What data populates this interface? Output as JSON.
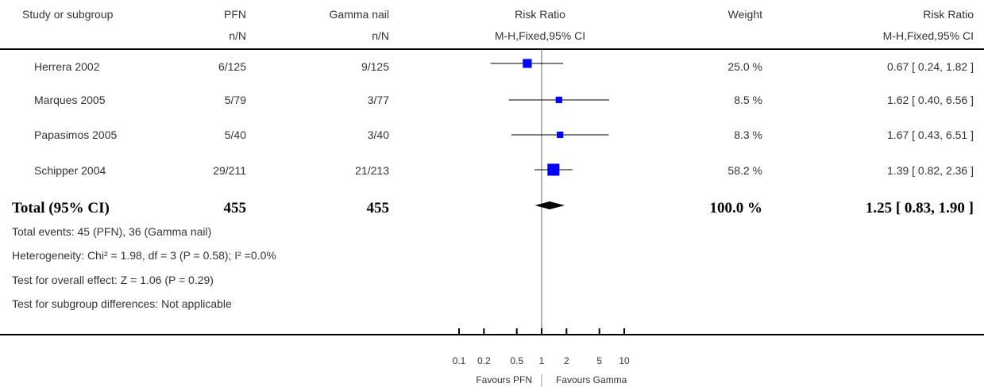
{
  "header": {
    "study_col": "Study or subgroup",
    "group1": "PFN",
    "group1_sub": "n/N",
    "group2": "Gamma nail",
    "group2_sub": "n/N",
    "effect": "Risk Ratio",
    "effect_sub": "M-H,Fixed,95% CI",
    "weight": "Weight",
    "effect2": "Risk Ratio",
    "effect2_sub": "M-H,Fixed,95% CI"
  },
  "studies": [
    {
      "name": "Herrera 2002",
      "pfn": "6/125",
      "gamma": "9/125",
      "weight": "25.0 %",
      "ci_text": "0.67 [ 0.24, 1.82 ]"
    },
    {
      "name": "Marques 2005",
      "pfn": "5/79",
      "gamma": "3/77",
      "weight": "8.5 %",
      "ci_text": "1.62 [ 0.40, 6.56 ]"
    },
    {
      "name": "Papasimos 2005",
      "pfn": "5/40",
      "gamma": "3/40",
      "weight": "8.3 %",
      "ci_text": "1.67 [ 0.43, 6.51 ]"
    },
    {
      "name": "Schipper 2004",
      "pfn": "29/211",
      "gamma": "21/213",
      "weight": "58.2 %",
      "ci_text": "1.39 [ 0.82, 2.36 ]"
    }
  ],
  "total": {
    "label": "Total (95% CI)",
    "pfn": "455",
    "gamma": "455",
    "weight": "100.0 %",
    "ci_text": "1.25 [ 0.83, 1.90 ]"
  },
  "footer": {
    "events": "Total events: 45 (PFN), 36 (Gamma nail)",
    "heterogeneity": "Heterogeneity: Chi² = 1.98, df = 3 (P = 0.58); I² =0.0%",
    "overall": "Test for overall effect: Z = 1.06 (P = 0.29)",
    "subgroup": "Test for subgroup differences: Not applicable"
  },
  "axis": {
    "favours_left": "Favours PFN",
    "favours_right": "Favours Gamma"
  },
  "chart_data": {
    "type": "scatter",
    "scale": "log",
    "xlim": [
      0.1,
      10
    ],
    "ticks": [
      {
        "value": 0.1,
        "label": "0.1"
      },
      {
        "value": 0.2,
        "label": "0.2"
      },
      {
        "value": 0.5,
        "label": "0.5"
      },
      {
        "value": 1,
        "label": "1"
      },
      {
        "value": 2,
        "label": "2"
      },
      {
        "value": 5,
        "label": "5"
      },
      {
        "value": 10,
        "label": "10"
      }
    ],
    "reference_line": 1,
    "points": [
      {
        "study": "Herrera 2002",
        "rr": 0.67,
        "lower": 0.24,
        "upper": 1.82,
        "weight_pct": 25.0
      },
      {
        "study": "Marques 2005",
        "rr": 1.62,
        "lower": 0.4,
        "upper": 6.56,
        "weight_pct": 8.5
      },
      {
        "study": "Papasimos 2005",
        "rr": 1.67,
        "lower": 0.43,
        "upper": 6.51,
        "weight_pct": 8.3
      },
      {
        "study": "Schipper 2004",
        "rr": 1.39,
        "lower": 0.82,
        "upper": 2.36,
        "weight_pct": 58.2
      }
    ],
    "pooled": {
      "rr": 1.25,
      "lower": 0.83,
      "upper": 1.9
    },
    "colors": {
      "box": "#0000ff",
      "line": "#000000",
      "diamond": "#000000"
    }
  }
}
